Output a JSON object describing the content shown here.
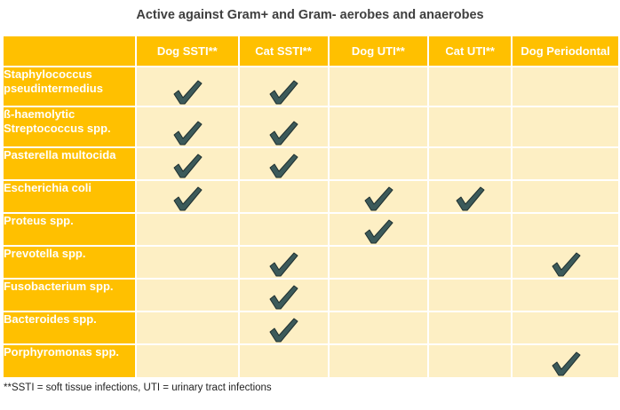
{
  "title": "Active against Gram+ and Gram- aerobes and anaerobes",
  "columns": [
    "Dog SSTI**",
    "Cat SSTI**",
    "Dog UTI**",
    "Cat UTI**",
    "Dog Periodontal"
  ],
  "rows": [
    {
      "name": "Staphylococcus pseudintermedius",
      "checks": [
        true,
        true,
        false,
        false,
        false
      ]
    },
    {
      "name": "ß-haemolytic Streptococcus spp.",
      "checks": [
        true,
        true,
        false,
        false,
        false
      ]
    },
    {
      "name": "Pasterella multocida",
      "checks": [
        true,
        true,
        false,
        false,
        false
      ]
    },
    {
      "name": "Escherichia coli",
      "checks": [
        true,
        false,
        true,
        true,
        false
      ]
    },
    {
      "name": "Proteus spp.",
      "checks": [
        false,
        false,
        true,
        false,
        false
      ]
    },
    {
      "name": "Prevotella spp.",
      "checks": [
        false,
        true,
        false,
        false,
        true
      ]
    },
    {
      "name": "Fusobacterium spp.",
      "checks": [
        false,
        true,
        false,
        false,
        false
      ]
    },
    {
      "name": "Bacteroides spp.",
      "checks": [
        false,
        true,
        false,
        false,
        false
      ]
    },
    {
      "name": "Porphyromonas spp.",
      "checks": [
        false,
        false,
        false,
        false,
        true
      ]
    }
  ],
  "footnote": "**SSTI = soft tissue infections,  UTI = urinary tract infections",
  "colors": {
    "header": "#ffc000",
    "cell": "#fdefc4",
    "check": "#3c5a5a"
  },
  "icons": {
    "check": "checkmark-icon"
  }
}
